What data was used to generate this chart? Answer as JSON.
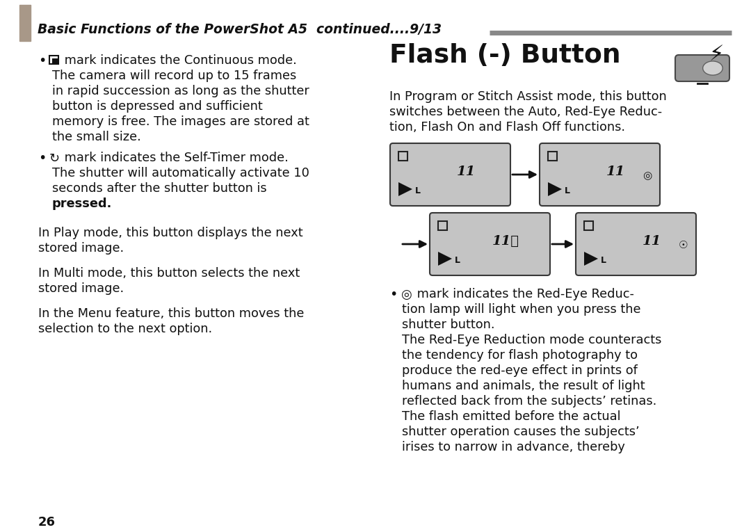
{
  "bg_color": "#ffffff",
  "header_bar_color": "#a89888",
  "header_text": "Basic Functions of the PowerShot A5  continued....9/13",
  "header_line_color": "#888888",
  "title_flash": "Flash (-) Button",
  "lcd_bg": "#c4c4c4",
  "lcd_border": "#383838",
  "page_number": "26",
  "left_b1_lines": [
    "mark indicates the Continuous mode.",
    "The camera will record up to 15 frames",
    "in rapid succession as long as the shutter",
    "button is depressed and sufficient",
    "memory is free. The images are stored at",
    "the small size."
  ],
  "left_b2_lines": [
    "mark indicates the Self-Timer mode.",
    "The shutter will automatically activate 10",
    "seconds after the shutter button is",
    "pressed."
  ],
  "left_para1_l1": "In Play mode, this button displays the next",
  "left_para1_l2": "stored image.",
  "left_para2_l1": "In Multi mode, this button selects the next",
  "left_para2_l2": "stored image.",
  "left_para3_l1": "In the Menu feature, this button moves the",
  "left_para3_l2": "selection to the next option.",
  "right_intro": [
    "In Program or Stitch Assist mode, this button",
    "switches between the Auto, Red-Eye Reduc-",
    "tion, Flash On and Flash Off functions."
  ],
  "right_b_lines": [
    "mark indicates the Red-Eye Reduc-",
    "tion lamp will light when you press the",
    "shutter button.",
    "The Red-Eye Reduction mode counteracts",
    "the tendency for flash photography to",
    "produce the red-eye effect in prints of",
    "humans and animals, the result of light",
    "reflected back from the subjects’ retinas.",
    "The flash emitted before the actual",
    "shutter operation causes the subjects’",
    "irises to narrow in advance, thereby"
  ]
}
